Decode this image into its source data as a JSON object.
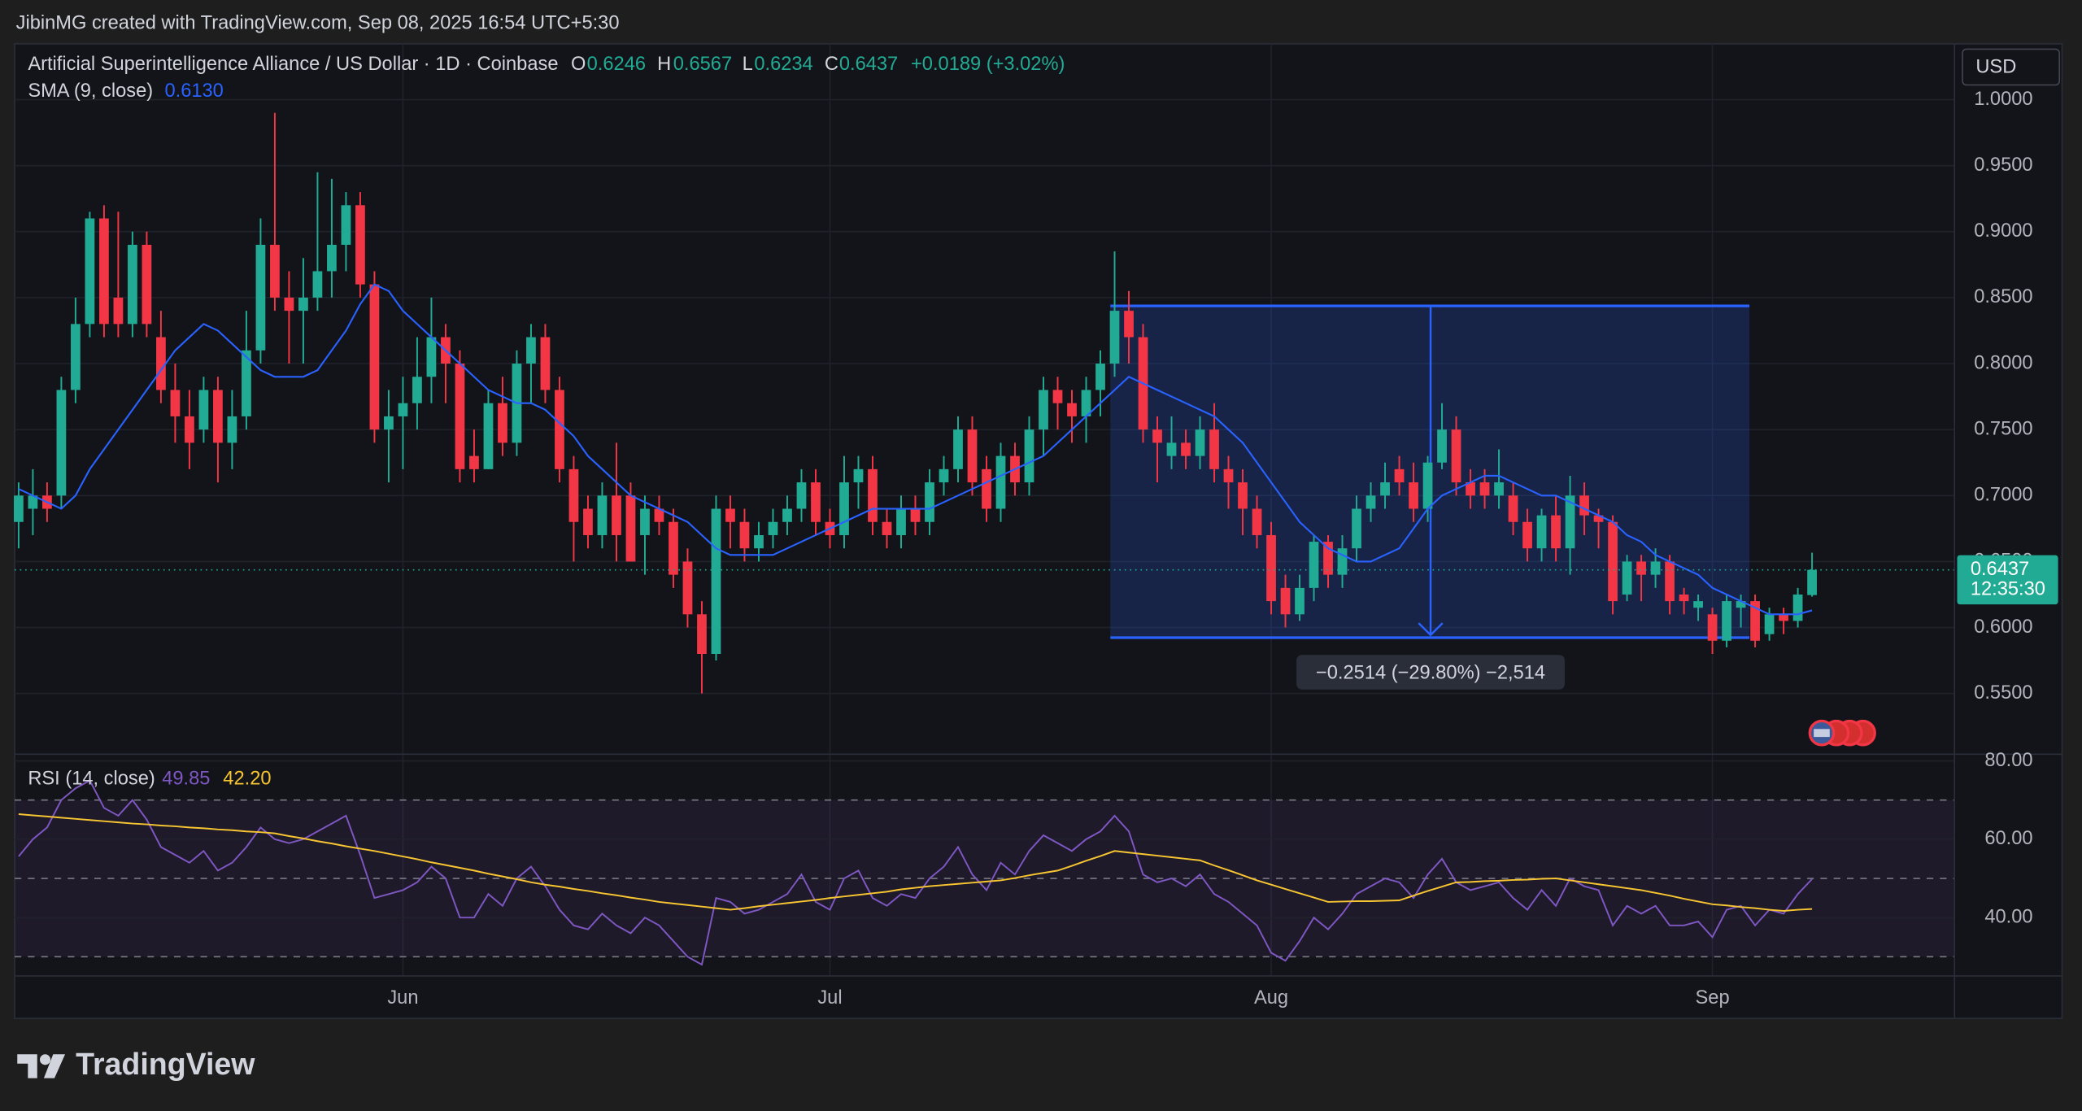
{
  "header": {
    "attribution": "JibinMG created with TradingView.com, Sep 08, 2025 16:54 UTC+5:30"
  },
  "currency": "USD",
  "footer": {
    "brand": "TradingView"
  },
  "chart_data": [
    {
      "type": "candlestick",
      "title": "Artificial Superintelligence Alliance / US Dollar · 1D · Coinbase",
      "ohlc_letters": [
        "O",
        "H",
        "L",
        "C"
      ],
      "change": "+0.0189 (+3.02%)",
      "categories": [
        null,
        null,
        null,
        null,
        null,
        null,
        null,
        null,
        null,
        null,
        null,
        null,
        null,
        null,
        null,
        null,
        null,
        null,
        null,
        null,
        null,
        null,
        null,
        null,
        null,
        null,
        null,
        "Jun",
        null,
        null,
        null,
        null,
        null,
        null,
        null,
        null,
        null,
        null,
        null,
        null,
        null,
        null,
        null,
        null,
        null,
        null,
        null,
        null,
        null,
        null,
        null,
        null,
        null,
        null,
        null,
        null,
        null,
        "Jul",
        null,
        null,
        null,
        null,
        null,
        null,
        null,
        null,
        null,
        null,
        null,
        null,
        null,
        null,
        null,
        null,
        null,
        null,
        null,
        null,
        null,
        null,
        null,
        null,
        null,
        null,
        null,
        null,
        null,
        null,
        "Aug",
        null,
        null,
        null,
        null,
        null,
        null,
        null,
        null,
        null,
        null,
        null,
        null,
        null,
        null,
        null,
        null,
        null,
        null,
        null,
        null,
        null,
        null,
        null,
        null,
        null,
        null,
        null,
        null,
        null,
        null,
        "Sep",
        null,
        null,
        null,
        null,
        null,
        null,
        null
      ],
      "open": [
        0.68,
        0.69,
        0.7,
        0.7,
        0.78,
        0.83,
        0.91,
        0.85,
        0.83,
        0.89,
        0.82,
        0.78,
        0.76,
        0.75,
        0.78,
        0.74,
        0.76,
        0.81,
        0.89,
        0.85,
        0.84,
        0.85,
        0.87,
        0.89,
        0.92,
        0.86,
        0.75,
        0.76,
        0.77,
        0.79,
        0.82,
        0.8,
        0.73,
        0.72,
        0.77,
        0.74,
        0.8,
        0.82,
        0.78,
        0.72,
        0.69,
        0.67,
        0.7,
        0.7,
        0.67,
        0.69,
        0.68,
        0.65,
        0.61,
        0.58,
        0.69,
        0.68,
        0.66,
        0.67,
        0.68,
        0.69,
        0.71,
        0.68,
        0.67,
        0.71,
        0.72,
        0.68,
        0.67,
        0.69,
        0.68,
        0.71,
        0.72,
        0.75,
        0.72,
        0.69,
        0.73,
        0.71,
        0.75,
        0.78,
        0.77,
        0.76,
        0.78,
        0.8,
        0.84,
        0.82,
        0.75,
        0.73,
        0.74,
        0.73,
        0.75,
        0.72,
        0.71,
        0.69,
        0.67,
        0.63,
        0.61,
        0.63,
        0.665,
        0.64,
        0.66,
        0.69,
        0.7,
        0.72,
        0.71,
        0.69,
        0.725,
        0.75,
        0.71,
        0.71,
        0.7,
        0.7,
        0.68,
        0.66,
        0.685,
        0.66,
        0.7,
        0.685,
        0.68,
        0.625,
        0.65,
        0.64,
        0.65,
        0.625,
        0.615,
        0.61,
        0.59,
        0.615,
        0.62,
        0.595,
        0.61,
        0.605,
        0.6246
      ],
      "high": [
        0.71,
        0.72,
        0.71,
        0.79,
        0.85,
        0.915,
        0.92,
        0.915,
        0.9,
        0.9,
        0.84,
        0.8,
        0.78,
        0.79,
        0.79,
        0.78,
        0.84,
        0.91,
        0.99,
        0.87,
        0.88,
        0.945,
        0.94,
        0.93,
        0.93,
        0.87,
        0.78,
        0.79,
        0.82,
        0.85,
        0.83,
        0.81,
        0.75,
        0.78,
        0.79,
        0.81,
        0.83,
        0.83,
        0.79,
        0.73,
        0.7,
        0.71,
        0.74,
        0.71,
        0.7,
        0.7,
        0.69,
        0.66,
        0.62,
        0.7,
        0.7,
        0.69,
        0.68,
        0.69,
        0.7,
        0.72,
        0.72,
        0.69,
        0.73,
        0.73,
        0.73,
        0.69,
        0.7,
        0.7,
        0.72,
        0.73,
        0.76,
        0.76,
        0.73,
        0.74,
        0.74,
        0.76,
        0.79,
        0.79,
        0.78,
        0.79,
        0.81,
        0.885,
        0.855,
        0.83,
        0.76,
        0.76,
        0.75,
        0.76,
        0.77,
        0.73,
        0.72,
        0.7,
        0.68,
        0.64,
        0.64,
        0.67,
        0.67,
        0.67,
        0.7,
        0.71,
        0.725,
        0.73,
        0.725,
        0.73,
        0.77,
        0.76,
        0.72,
        0.72,
        0.735,
        0.71,
        0.69,
        0.69,
        0.7,
        0.715,
        0.71,
        0.69,
        0.685,
        0.655,
        0.655,
        0.66,
        0.655,
        0.63,
        0.625,
        0.615,
        0.625,
        0.625,
        0.625,
        0.615,
        0.615,
        0.63,
        0.6567
      ],
      "low": [
        0.66,
        0.67,
        0.68,
        0.69,
        0.77,
        0.82,
        0.82,
        0.82,
        0.82,
        0.82,
        0.77,
        0.74,
        0.72,
        0.74,
        0.71,
        0.72,
        0.75,
        0.8,
        0.84,
        0.8,
        0.8,
        0.84,
        0.85,
        0.87,
        0.85,
        0.74,
        0.71,
        0.72,
        0.75,
        0.77,
        0.77,
        0.71,
        0.71,
        0.72,
        0.73,
        0.73,
        0.77,
        0.77,
        0.71,
        0.65,
        0.66,
        0.66,
        0.65,
        0.65,
        0.64,
        0.67,
        0.63,
        0.6,
        0.55,
        0.575,
        0.66,
        0.65,
        0.65,
        0.66,
        0.67,
        0.68,
        0.67,
        0.66,
        0.66,
        0.69,
        0.67,
        0.66,
        0.66,
        0.67,
        0.67,
        0.7,
        0.71,
        0.7,
        0.68,
        0.68,
        0.7,
        0.7,
        0.73,
        0.75,
        0.74,
        0.74,
        0.76,
        0.79,
        0.8,
        0.74,
        0.71,
        0.72,
        0.72,
        0.72,
        0.71,
        0.69,
        0.67,
        0.66,
        0.61,
        0.6,
        0.605,
        0.62,
        0.63,
        0.63,
        0.65,
        0.68,
        0.69,
        0.7,
        0.68,
        0.68,
        0.72,
        0.7,
        0.69,
        0.69,
        0.69,
        0.67,
        0.65,
        0.65,
        0.65,
        0.64,
        0.67,
        0.66,
        0.61,
        0.62,
        0.62,
        0.63,
        0.61,
        0.61,
        0.605,
        0.58,
        0.585,
        0.6,
        0.585,
        0.59,
        0.595,
        0.6,
        0.6234
      ],
      "close": [
        0.7,
        0.7,
        0.69,
        0.78,
        0.83,
        0.91,
        0.83,
        0.83,
        0.89,
        0.83,
        0.78,
        0.76,
        0.74,
        0.78,
        0.74,
        0.76,
        0.81,
        0.89,
        0.85,
        0.84,
        0.85,
        0.87,
        0.89,
        0.92,
        0.86,
        0.75,
        0.76,
        0.77,
        0.79,
        0.82,
        0.8,
        0.72,
        0.72,
        0.77,
        0.74,
        0.8,
        0.82,
        0.78,
        0.72,
        0.68,
        0.67,
        0.7,
        0.67,
        0.65,
        0.69,
        0.68,
        0.64,
        0.61,
        0.58,
        0.69,
        0.68,
        0.66,
        0.67,
        0.68,
        0.69,
        0.71,
        0.68,
        0.67,
        0.71,
        0.72,
        0.68,
        0.67,
        0.69,
        0.68,
        0.71,
        0.72,
        0.75,
        0.71,
        0.69,
        0.73,
        0.71,
        0.75,
        0.78,
        0.77,
        0.76,
        0.78,
        0.8,
        0.84,
        0.82,
        0.75,
        0.74,
        0.74,
        0.73,
        0.75,
        0.72,
        0.71,
        0.69,
        0.67,
        0.62,
        0.61,
        0.63,
        0.665,
        0.64,
        0.66,
        0.69,
        0.7,
        0.71,
        0.71,
        0.69,
        0.725,
        0.75,
        0.71,
        0.7,
        0.7,
        0.71,
        0.68,
        0.66,
        0.685,
        0.66,
        0.7,
        0.685,
        0.68,
        0.62,
        0.65,
        0.64,
        0.65,
        0.62,
        0.62,
        0.62,
        0.59,
        0.62,
        0.62,
        0.59,
        0.61,
        0.605,
        0.625,
        0.6437
      ],
      "colors": {
        "up": "#22ab94",
        "down": "#f23645"
      },
      "sma": {
        "name": "SMA (9, close)",
        "color": "#2962ff",
        "value_label": "0.6130",
        "values": [
          0.705,
          0.7,
          0.695,
          0.69,
          0.7,
          0.72,
          0.735,
          0.75,
          0.765,
          0.78,
          0.795,
          0.81,
          0.82,
          0.83,
          0.825,
          0.815,
          0.805,
          0.795,
          0.79,
          0.79,
          0.79,
          0.795,
          0.81,
          0.825,
          0.845,
          0.86,
          0.855,
          0.84,
          0.83,
          0.82,
          0.81,
          0.8,
          0.79,
          0.78,
          0.775,
          0.77,
          0.77,
          0.765,
          0.755,
          0.745,
          0.73,
          0.72,
          0.71,
          0.7,
          0.695,
          0.69,
          0.685,
          0.68,
          0.67,
          0.66,
          0.655,
          0.655,
          0.655,
          0.655,
          0.66,
          0.665,
          0.67,
          0.675,
          0.68,
          0.685,
          0.69,
          0.69,
          0.69,
          0.69,
          0.69,
          0.695,
          0.7,
          0.705,
          0.71,
          0.715,
          0.72,
          0.725,
          0.73,
          0.74,
          0.75,
          0.76,
          0.77,
          0.78,
          0.79,
          0.785,
          0.78,
          0.775,
          0.77,
          0.765,
          0.76,
          0.75,
          0.74,
          0.725,
          0.71,
          0.695,
          0.68,
          0.67,
          0.66,
          0.655,
          0.65,
          0.65,
          0.655,
          0.66,
          0.675,
          0.69,
          0.7,
          0.705,
          0.71,
          0.715,
          0.715,
          0.71,
          0.705,
          0.7,
          0.7,
          0.695,
          0.69,
          0.685,
          0.68,
          0.67,
          0.665,
          0.655,
          0.65,
          0.645,
          0.64,
          0.63,
          0.625,
          0.62,
          0.615,
          0.61,
          0.61,
          0.61,
          0.613
        ]
      },
      "ylim": [
        0.504,
        1.0423
      ],
      "yticks": [
        {
          "value": 0.55,
          "label": "0.5500"
        },
        {
          "value": 0.6,
          "label": "0.6000"
        },
        {
          "value": 0.65,
          "label": "0.6500"
        },
        {
          "value": 0.7,
          "label": "0.7000"
        },
        {
          "value": 0.75,
          "label": "0.7500"
        },
        {
          "value": 0.8,
          "label": "0.8000"
        },
        {
          "value": 0.85,
          "label": "0.8500"
        },
        {
          "value": 0.9,
          "label": "0.9000"
        },
        {
          "value": 0.95,
          "label": "0.9500"
        },
        {
          "value": 1.0,
          "label": "1.0000"
        }
      ],
      "grid": true,
      "last_price_time": "12:35:30",
      "measure": {
        "from": 76.7,
        "to": 121.6,
        "arrow_at": 99.2,
        "top": 0.8437,
        "bottom": 0.5923,
        "label": "−0.2514 (−29.80%) −2,514"
      }
    },
    {
      "type": "line",
      "title": "RSI (14, close)",
      "series": [
        {
          "color": "#7e57c2",
          "values": [
            55.6,
            60,
            63,
            70,
            73,
            75,
            68,
            66,
            70,
            65,
            58,
            56,
            54,
            57,
            52,
            54,
            58,
            63,
            60,
            59,
            60,
            62,
            64,
            66,
            56,
            45,
            46,
            47,
            49,
            53,
            50,
            40,
            40,
            46,
            43,
            50,
            53,
            48,
            42,
            38,
            37,
            41,
            38,
            36,
            40,
            38,
            34,
            30,
            28,
            45,
            44,
            41,
            42,
            44,
            46,
            51,
            44,
            42,
            50,
            52,
            45,
            43,
            46,
            45,
            50,
            53,
            58,
            51,
            47,
            54,
            51,
            57,
            61,
            59,
            57,
            60,
            62,
            66,
            62,
            51,
            49,
            50,
            48,
            51,
            46,
            44,
            41,
            38,
            31,
            29,
            34,
            40,
            37,
            41,
            46,
            48,
            50,
            49,
            45,
            51,
            55,
            49,
            47,
            48,
            49,
            45,
            42,
            47,
            43,
            50,
            48,
            47,
            38,
            43,
            41,
            43,
            38,
            38,
            39,
            35,
            42,
            43,
            38,
            42,
            41,
            46,
            49.85
          ]
        },
        {
          "color": "#f7c531",
          "value_label": "42.20",
          "values": [
            66.4,
            66.1,
            65.8,
            65.5,
            65.2,
            64.9,
            64.6,
            64.3,
            64,
            63.8,
            63.5,
            63.3,
            63,
            62.8,
            62.5,
            62.3,
            62,
            61.8,
            61.5,
            60.8,
            60.2,
            59.5,
            58.9,
            58.2,
            57.6,
            57,
            56.3,
            55.6,
            54.9,
            54.1,
            53.4,
            52.7,
            52,
            51.2,
            50.5,
            49.8,
            49,
            48.4,
            47.9,
            47.3,
            46.8,
            46.2,
            45.7,
            45.1,
            44.6,
            44,
            43.6,
            43.2,
            42.8,
            42.4,
            42,
            42.4,
            42.9,
            43.3,
            43.7,
            44.1,
            44.5,
            45,
            45.4,
            45.8,
            46.2,
            46.6,
            47.2,
            47.6,
            48,
            48.3,
            48.6,
            48.9,
            49.2,
            49.5,
            50.1,
            50.8,
            51.4,
            52,
            53.2,
            54.5,
            55.7,
            57,
            56.6,
            56.2,
            55.8,
            55.4,
            55,
            54.6,
            53.3,
            52.1,
            50.8,
            49.5,
            48.4,
            47.3,
            46.2,
            45.1,
            44,
            44.1,
            44.2,
            44.2,
            44.3,
            44.4,
            45.6,
            46.8,
            47.9,
            49,
            49.1,
            49.3,
            49.4,
            49.6,
            49.7,
            49.9,
            50,
            49.5,
            49,
            48.5,
            48,
            47.5,
            47,
            46.3,
            45.6,
            44.8,
            44.1,
            43.4,
            43.1,
            42.7,
            42.4,
            42,
            41.7,
            42,
            42.2
          ]
        }
      ],
      "ylim": [
        25.1,
        81.7
      ],
      "yticks": [
        {
          "value": 40,
          "label": "40.00"
        },
        {
          "value": 60,
          "label": "60.00"
        },
        {
          "value": 80,
          "label": "80.00"
        }
      ],
      "bands": [
        70,
        50,
        30
      ],
      "grid": true
    }
  ]
}
